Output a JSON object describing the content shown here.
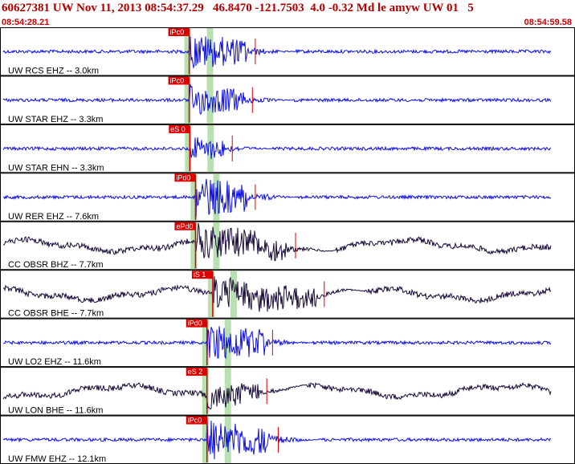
{
  "header": {
    "title": "60627381 UW Nov 11, 2013 08:54:37.29   46.8470 -121.7503  4.0 -0.32 Md le amyw UW 01   5",
    "time_start": "08:54:28.21",
    "time_end": "08:54:59.58"
  },
  "colors": {
    "header_text": "#b00000",
    "trace_blue": "#1010dd",
    "trace_dark": "#1a0a3a",
    "pick_marker": "#dd0000",
    "pick_window": "#b8e0b0",
    "panel_border": "#000000"
  },
  "chart_data": {
    "type": "line",
    "title": "60627381 UW Nov 11, 2013 08:54:37.29   46.8470 -121.7503  4.0 -0.32 Md le amyw UW 01   5",
    "x_range": [
      "08:54:28.21",
      "08:54:59.58"
    ],
    "series": [
      {
        "name": "UW RCS EHZ -- 3.0km",
        "pick_label": "iPc0",
        "color": "blue",
        "signal_window": [
          0.329,
          0.43
        ],
        "amplitude": 0.8
      },
      {
        "name": "UW STAR EHZ -- 3.3km",
        "pick_label": "iPc0",
        "color": "blue",
        "signal_window": [
          0.329,
          0.425
        ],
        "amplitude": 0.7
      },
      {
        "name": "UW STAR EHN -- 3.3km",
        "pick_label": "eS 0",
        "color": "blue",
        "signal_window": [
          0.33,
          0.39
        ],
        "amplitude": 0.55
      },
      {
        "name": "UW RER EHZ -- 7.6km",
        "pick_label": "iPd0",
        "color": "blue",
        "signal_window": [
          0.34,
          0.43
        ],
        "amplitude": 0.9
      },
      {
        "name": "CC OBSR BHZ -- 7.7km",
        "pick_label": "ePd0",
        "color": "dark",
        "signal_window": [
          0.34,
          0.5
        ],
        "amplitude": 0.8
      },
      {
        "name": "CC OBSR BHE -- 7.7km",
        "pick_label": "iS 1",
        "color": "dark",
        "signal_window": [
          0.37,
          0.55
        ],
        "amplitude": 0.75
      },
      {
        "name": "UW LO2 EHZ -- 11.6km",
        "pick_label": "iPd0",
        "color": "blue",
        "signal_window": [
          0.36,
          0.46
        ],
        "amplitude": 0.85
      },
      {
        "name": "UW LON BHE -- 11.6km",
        "pick_label": "eS 2",
        "color": "dark",
        "signal_window": [
          0.36,
          0.45
        ],
        "amplitude": 0.6
      },
      {
        "name": "UW FMW EHZ -- 12.1km",
        "pick_label": "iPc0",
        "color": "blue",
        "signal_window": [
          0.36,
          0.47
        ],
        "amplitude": 0.9
      }
    ]
  }
}
